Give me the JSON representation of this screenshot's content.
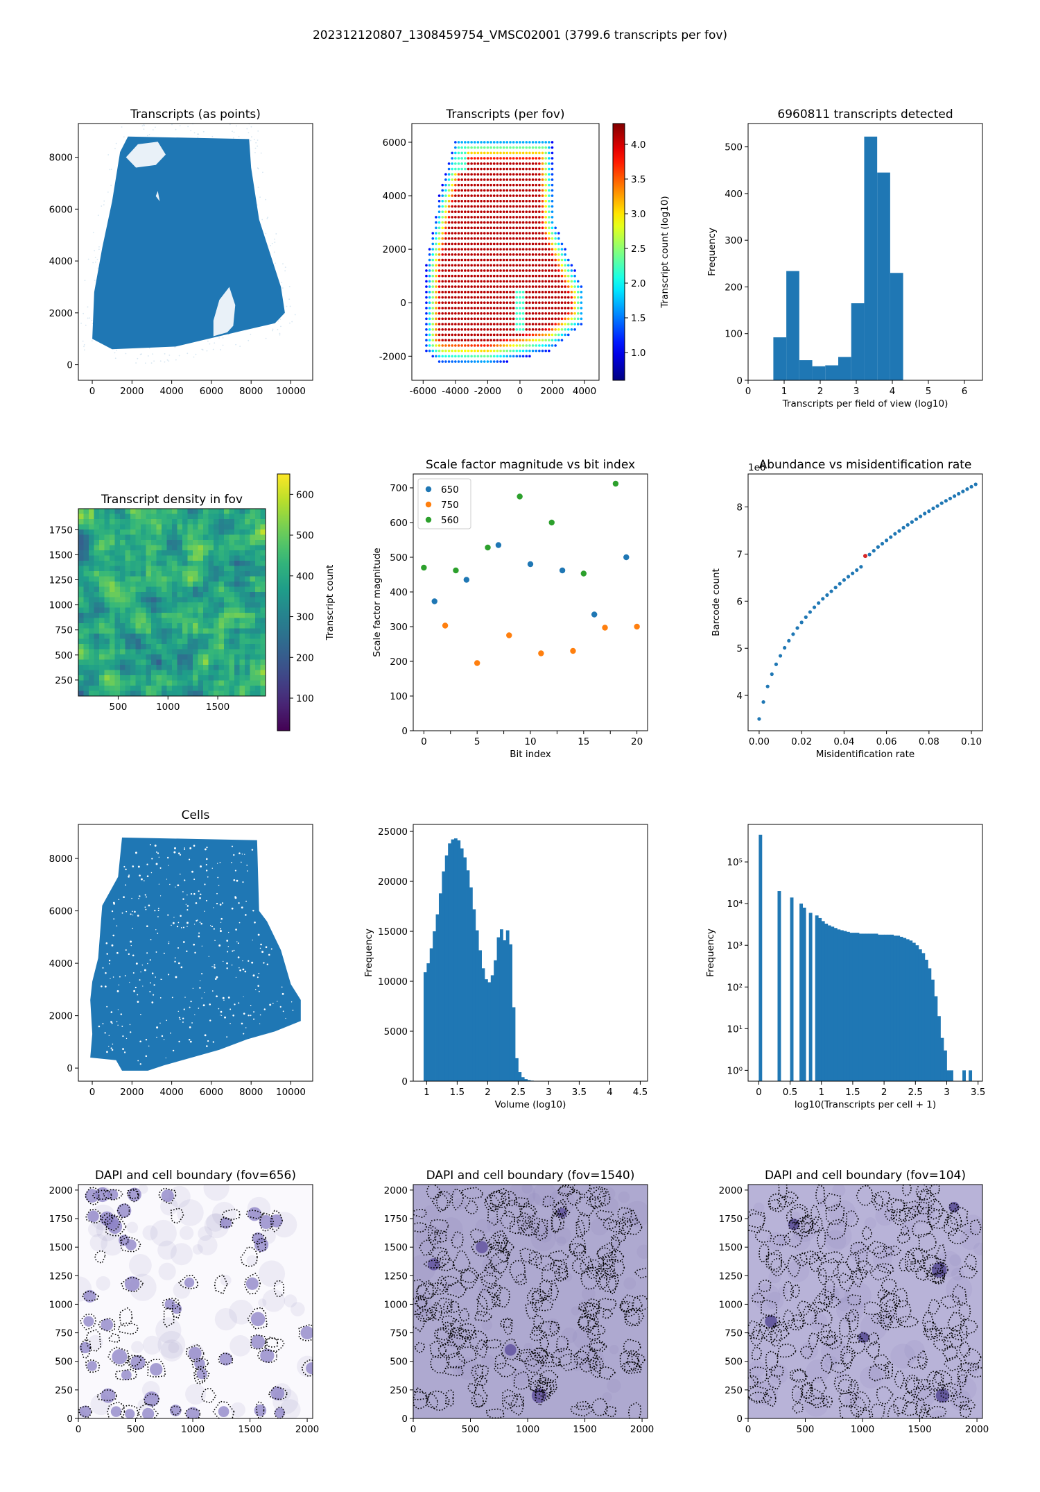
{
  "suptitle": "202312120807_1308459754_VMSC02001 (3799.6 transcripts per fov)",
  "chart_data": [
    {
      "id": "transcripts_points",
      "type": "scatter",
      "title": "Transcripts (as points)",
      "xlabel": "",
      "ylabel": "",
      "xlim": [
        -700,
        11100
      ],
      "ylim": [
        -600,
        9300
      ],
      "xticks": [
        0,
        2000,
        4000,
        6000,
        8000,
        10000
      ],
      "yticks": [
        0,
        2000,
        4000,
        6000,
        8000
      ],
      "color": "#1f77b4",
      "outline": [
        [
          0,
          1000
        ],
        [
          1000,
          600
        ],
        [
          4200,
          700
        ],
        [
          7500,
          1300
        ],
        [
          9200,
          1600
        ],
        [
          9700,
          2000
        ],
        [
          9500,
          3000
        ],
        [
          8400,
          5600
        ],
        [
          8000,
          7600
        ],
        [
          7900,
          8700
        ],
        [
          1800,
          8800
        ],
        [
          1400,
          8200
        ],
        [
          1000,
          6300
        ],
        [
          500,
          4500
        ],
        [
          100,
          2800
        ],
        [
          0,
          1000
        ]
      ],
      "holes": [
        {
          "outline": [
            [
              1700,
              8000
            ],
            [
              2300,
              8500
            ],
            [
              3300,
              8600
            ],
            [
              3700,
              8100
            ],
            [
              3200,
              7700
            ],
            [
              2200,
              7600
            ]
          ]
        },
        {
          "outline": [
            [
              6100,
              1100
            ],
            [
              6800,
              1250
            ],
            [
              7100,
              1500
            ],
            [
              7200,
              2300
            ],
            [
              6900,
              3000
            ],
            [
              6400,
              2500
            ],
            [
              6100,
              1700
            ]
          ]
        },
        {
          "outline": [
            [
              3200,
              6500
            ],
            [
              3400,
              6300
            ],
            [
              3300,
              6700
            ]
          ]
        }
      ]
    },
    {
      "id": "transcripts_per_fov",
      "type": "scatter",
      "title": "Transcripts (per fov)",
      "xlabel": "",
      "ylabel": "",
      "xlim": [
        -6700,
        4900
      ],
      "ylim": [
        -2900,
        6700
      ],
      "xticks": [
        -6000,
        -4000,
        -2000,
        0,
        2000,
        4000
      ],
      "yticks": [
        -2000,
        0,
        2000,
        4000,
        6000
      ],
      "colorbar": {
        "label": "Transcript count (log10)",
        "range": [
          0.6,
          4.3
        ],
        "ticks": [
          1.0,
          1.5,
          2.0,
          2.5,
          3.0,
          3.5,
          4.0
        ],
        "colormap": "jet"
      },
      "grid_spacing": 200,
      "region": [
        [
          -4000,
          6200
        ],
        [
          2000,
          6200
        ],
        [
          2200,
          3000
        ],
        [
          3200,
          1500
        ],
        [
          4000,
          500
        ],
        [
          4000,
          -800
        ],
        [
          2000,
          -1800
        ],
        [
          -2000,
          -2400
        ],
        [
          -5000,
          -2300
        ],
        [
          -5900,
          -1800
        ],
        [
          -5800,
          1500
        ],
        [
          -5000,
          4000
        ],
        [
          -4000,
          6200
        ]
      ],
      "value_model": "high (~4.0) in interior, falling to ~1.0 within ~900 units of boundary"
    },
    {
      "id": "fov_hist",
      "type": "bar",
      "title": "6960811 transcripts detected",
      "xlabel": "Transcripts per field of view (log10)",
      "ylabel": "Frequency",
      "xlim": [
        0,
        6.5
      ],
      "ylim": [
        0,
        550
      ],
      "xticks": [
        0,
        1,
        2,
        3,
        4,
        5,
        6
      ],
      "yticks": [
        0,
        100,
        200,
        300,
        400,
        500
      ],
      "bin_edges": [
        0.7,
        1.06,
        1.42,
        1.78,
        2.14,
        2.5,
        2.86,
        3.22,
        3.58,
        3.94,
        4.3
      ],
      "values": [
        92,
        234,
        43,
        30,
        32,
        50,
        165,
        522,
        445,
        230
      ]
    },
    {
      "id": "density_fov",
      "type": "heatmap",
      "title": "Transcript density in fov",
      "xlabel": "",
      "ylabel": "",
      "xlim": [
        100,
        1980
      ],
      "ylim": [
        90,
        1960
      ],
      "xticks": [
        500,
        1000,
        1500
      ],
      "yticks": [
        250,
        500,
        750,
        1000,
        1250,
        1500,
        1750
      ],
      "colorbar": {
        "label": "Transcript count",
        "range": [
          20,
          650
        ],
        "ticks": [
          100,
          200,
          300,
          400,
          500,
          600
        ],
        "colormap": "viridis"
      },
      "value_range": [
        250,
        560
      ]
    },
    {
      "id": "scale_factors",
      "type": "scatter",
      "title": "Scale factor magnitude vs bit index",
      "xlabel": "Bit index",
      "ylabel": "Scale factor magnitude",
      "xlim": [
        -1,
        21
      ],
      "ylim": [
        0,
        740
      ],
      "xticks": [
        0,
        2.5,
        5,
        7.5,
        10,
        12.5,
        15,
        17.5,
        20
      ],
      "xticklabels": [
        "0",
        "",
        "5",
        "",
        "10",
        "",
        "15",
        "",
        "20"
      ],
      "yticks": [
        0,
        100,
        200,
        300,
        400,
        500,
        600,
        700
      ],
      "legend": "top-left",
      "series": [
        {
          "name": "650",
          "color": "#1f77b4",
          "x": [
            1,
            4,
            7,
            10,
            13,
            16,
            19
          ],
          "y": [
            373,
            435,
            535,
            480,
            462,
            335,
            500
          ]
        },
        {
          "name": "750",
          "color": "#ff7f0e",
          "x": [
            2,
            5,
            8,
            11,
            14,
            17,
            20
          ],
          "y": [
            303,
            195,
            275,
            223,
            230,
            297,
            300
          ]
        },
        {
          "name": "560",
          "color": "#2ca02c",
          "x": [
            0,
            3,
            6,
            9,
            12,
            15,
            18
          ],
          "y": [
            470,
            462,
            528,
            675,
            600,
            453,
            712
          ]
        }
      ]
    },
    {
      "id": "abundance",
      "type": "scatter",
      "title": "Abundance vs misidentification rate",
      "xlabel": "Misidentification rate",
      "ylabel": "Barcode count",
      "offset_text": "1e6",
      "xlim": [
        -0.0052,
        0.1052
      ],
      "ylim": [
        3.25,
        8.7
      ],
      "xticks": [
        0.0,
        0.02,
        0.04,
        0.06,
        0.08,
        0.1
      ],
      "xticklabels": [
        "0.00",
        "0.02",
        "0.04",
        "0.06",
        "0.08",
        "0.10"
      ],
      "yticks": [
        4,
        5,
        6,
        7,
        8
      ],
      "color": "#1f77b4",
      "highlight": {
        "x": 0.05,
        "y": 6.96,
        "color": "#d62728"
      },
      "x": [
        0.0,
        0.002,
        0.004,
        0.006,
        0.008,
        0.01,
        0.012,
        0.014,
        0.016,
        0.018,
        0.02,
        0.022,
        0.024,
        0.026,
        0.028,
        0.03,
        0.032,
        0.034,
        0.036,
        0.038,
        0.04,
        0.042,
        0.044,
        0.046,
        0.048,
        0.05,
        0.052,
        0.054,
        0.056,
        0.058,
        0.06,
        0.062,
        0.064,
        0.066,
        0.068,
        0.07,
        0.072,
        0.074,
        0.076,
        0.078,
        0.08,
        0.082,
        0.084,
        0.086,
        0.088,
        0.09,
        0.092,
        0.094,
        0.096,
        0.098,
        0.1,
        0.102
      ],
      "y": [
        3.5,
        3.86,
        4.19,
        4.45,
        4.66,
        4.84,
        5.01,
        5.16,
        5.3,
        5.43,
        5.55,
        5.66,
        5.77,
        5.87,
        5.96,
        6.05,
        6.13,
        6.21,
        6.29,
        6.37,
        6.45,
        6.52,
        6.59,
        6.66,
        6.73,
        6.96,
        6.99,
        7.07,
        7.15,
        7.22,
        7.29,
        7.36,
        7.43,
        7.49,
        7.56,
        7.62,
        7.68,
        7.74,
        7.8,
        7.86,
        7.91,
        7.97,
        8.02,
        8.08,
        8.13,
        8.18,
        8.23,
        8.28,
        8.33,
        8.38,
        8.43,
        8.48
      ]
    },
    {
      "id": "cells",
      "type": "scatter",
      "title": "Cells",
      "xlabel": "",
      "ylabel": "",
      "xlim": [
        -700,
        11100
      ],
      "ylim": [
        -500,
        9300
      ],
      "xticks": [
        0,
        2000,
        4000,
        6000,
        8000,
        10000
      ],
      "yticks": [
        0,
        2000,
        4000,
        6000,
        8000
      ],
      "color": "#1f77b4",
      "outline": [
        [
          -100,
          2600
        ],
        [
          0,
          1300
        ],
        [
          -100,
          400
        ],
        [
          1200,
          300
        ],
        [
          1500,
          -100
        ],
        [
          2800,
          -100
        ],
        [
          3600,
          100
        ],
        [
          5000,
          400
        ],
        [
          6400,
          700
        ],
        [
          7800,
          1100
        ],
        [
          9200,
          1400
        ],
        [
          10500,
          1800
        ],
        [
          10500,
          2600
        ],
        [
          10000,
          3200
        ],
        [
          9500,
          4500
        ],
        [
          8800,
          5600
        ],
        [
          8400,
          6000
        ],
        [
          8300,
          8700
        ],
        [
          1500,
          8800
        ],
        [
          1300,
          7300
        ],
        [
          500,
          6200
        ],
        [
          300,
          4200
        ],
        [
          0,
          3300
        ],
        [
          -100,
          2600
        ]
      ]
    },
    {
      "id": "volume_hist",
      "type": "bar",
      "title": "",
      "xlabel": "Volume (log10)",
      "ylabel": "Frequency",
      "xlim": [
        0.78,
        4.62
      ],
      "ylim": [
        0,
        25700
      ],
      "xticks": [
        1.0,
        1.5,
        2.0,
        2.5,
        3.0,
        3.5,
        4.0,
        4.5
      ],
      "yticks": [
        0,
        5000,
        10000,
        15000,
        20000,
        25000
      ],
      "bin_start": 0.95,
      "bin_width": 0.05,
      "values": [
        10900,
        11800,
        13300,
        15000,
        16700,
        18800,
        21000,
        22600,
        23800,
        24200,
        24300,
        24100,
        23300,
        22400,
        21100,
        19400,
        17200,
        15100,
        13100,
        11300,
        10200,
        9900,
        10600,
        12100,
        14400,
        15200,
        14100,
        15100,
        13700,
        7400,
        2300,
        900,
        400,
        200,
        110,
        60,
        30,
        20,
        10,
        5,
        3,
        2,
        1,
        0,
        0,
        0,
        0,
        0,
        0,
        0
      ]
    },
    {
      "id": "transcripts_per_cell",
      "type": "bar",
      "title": "",
      "xlabel": "log10(Transcripts per cell + 1)",
      "ylabel": "Frequency",
      "log_y": true,
      "xlim": [
        -0.17,
        3.57
      ],
      "ylim_log10": [
        -0.26,
        5.9
      ],
      "xticks": [
        0.0,
        0.5,
        1.0,
        1.5,
        2.0,
        2.5,
        3.0,
        3.5
      ],
      "yticks_log10": [
        0,
        1,
        2,
        3,
        4,
        5
      ],
      "yticklabels": [
        "10⁰",
        "10¹",
        "10²",
        "10³",
        "10⁴",
        "10⁵"
      ],
      "bin_start": 0.0,
      "bin_width": 0.05,
      "values": [
        450000,
        0,
        0,
        0,
        0,
        0,
        20000,
        0,
        0,
        0,
        14000,
        0,
        0,
        10000,
        8000,
        0,
        6000,
        0,
        5200,
        4500,
        3800,
        3300,
        3000,
        2800,
        2600,
        2400,
        2300,
        2200,
        2100,
        2000,
        2000,
        2000,
        1900,
        1900,
        1900,
        1900,
        1900,
        1900,
        1800,
        1800,
        1800,
        1800,
        1800,
        1700,
        1700,
        1600,
        1500,
        1400,
        1300,
        1150,
        1000,
        800,
        650,
        450,
        280,
        150,
        60,
        20,
        6,
        3,
        1,
        1,
        0,
        0,
        0,
        1,
        0,
        1
      ]
    },
    {
      "id": "dapi_656",
      "type": "heatmap",
      "title": "DAPI and cell boundary (fov=656)",
      "xlabel": "",
      "ylabel": "",
      "xlim": [
        0,
        2048
      ],
      "ylim": [
        0,
        2048
      ],
      "xticks": [
        0,
        500,
        1000,
        1500,
        2000
      ],
      "yticks": [
        0,
        250,
        500,
        750,
        1000,
        1250,
        1500,
        1750,
        2000
      ],
      "background": "#faf9fd",
      "nuclei": [
        [
          120,
          1950
        ],
        [
          210,
          1960
        ],
        [
          300,
          1960
        ],
        [
          490,
          1960
        ],
        [
          780,
          1950
        ],
        [
          130,
          1770
        ],
        [
          250,
          1750
        ],
        [
          290,
          1720
        ],
        [
          320,
          1680
        ],
        [
          400,
          1820
        ],
        [
          1290,
          1710
        ],
        [
          1540,
          1790
        ],
        [
          1640,
          1720
        ],
        [
          1730,
          1730
        ],
        [
          1570,
          1580
        ],
        [
          1600,
          1520
        ],
        [
          400,
          1560
        ],
        [
          460,
          1520
        ],
        [
          470,
          1180
        ],
        [
          970,
          1190
        ],
        [
          1520,
          1180
        ],
        [
          800,
          1000
        ],
        [
          860,
          960
        ],
        [
          100,
          1070
        ],
        [
          90,
          850
        ],
        [
          250,
          820
        ],
        [
          1570,
          870
        ],
        [
          1570,
          670
        ],
        [
          1650,
          550
        ],
        [
          60,
          620
        ],
        [
          1020,
          570
        ],
        [
          1060,
          480
        ],
        [
          1080,
          390
        ],
        [
          120,
          460
        ],
        [
          520,
          490
        ],
        [
          680,
          430
        ],
        [
          420,
          380
        ],
        [
          260,
          200
        ],
        [
          640,
          170
        ],
        [
          330,
          60
        ],
        [
          60,
          60
        ],
        [
          450,
          40
        ],
        [
          610,
          40
        ],
        [
          850,
          70
        ],
        [
          1000,
          40
        ],
        [
          1270,
          60
        ],
        [
          1590,
          70
        ],
        [
          1740,
          220
        ],
        [
          1760,
          50
        ],
        [
          2040,
          440
        ],
        [
          2000,
          750
        ],
        [
          1290,
          520
        ],
        [
          360,
          540
        ]
      ],
      "boundaries_count": 70
    },
    {
      "id": "dapi_1540",
      "type": "heatmap",
      "title": "DAPI and cell boundary (fov=1540)",
      "xlabel": "",
      "ylabel": "",
      "xlim": [
        0,
        2048
      ],
      "ylim": [
        0,
        2048
      ],
      "xticks": [
        0,
        500,
        1000,
        1500,
        2000
      ],
      "yticks": [
        0,
        250,
        500,
        750,
        1000,
        1250,
        1500,
        1750,
        2000
      ],
      "background": "#aea9d0",
      "nuclei": [
        [
          180,
          1350
        ],
        [
          1100,
          200
        ],
        [
          600,
          1500
        ],
        [
          1300,
          1800
        ],
        [
          850,
          600
        ]
      ],
      "boundaries_count": 240
    },
    {
      "id": "dapi_104",
      "type": "heatmap",
      "title": "DAPI and cell boundary (fov=104)",
      "xlabel": "",
      "ylabel": "",
      "xlim": [
        0,
        2048
      ],
      "ylim": [
        0,
        2048
      ],
      "xticks": [
        0,
        500,
        1000,
        1500,
        2000
      ],
      "yticks": [
        0,
        250,
        500,
        750,
        1000,
        1250,
        1500,
        1750,
        2000
      ],
      "background": "#b8b3d8",
      "nuclei": [
        [
          1010,
          710
        ],
        [
          1670,
          1300
        ],
        [
          1700,
          200
        ],
        [
          400,
          1700
        ],
        [
          1800,
          1850
        ],
        [
          200,
          850
        ]
      ],
      "boundaries_count": 230
    }
  ]
}
